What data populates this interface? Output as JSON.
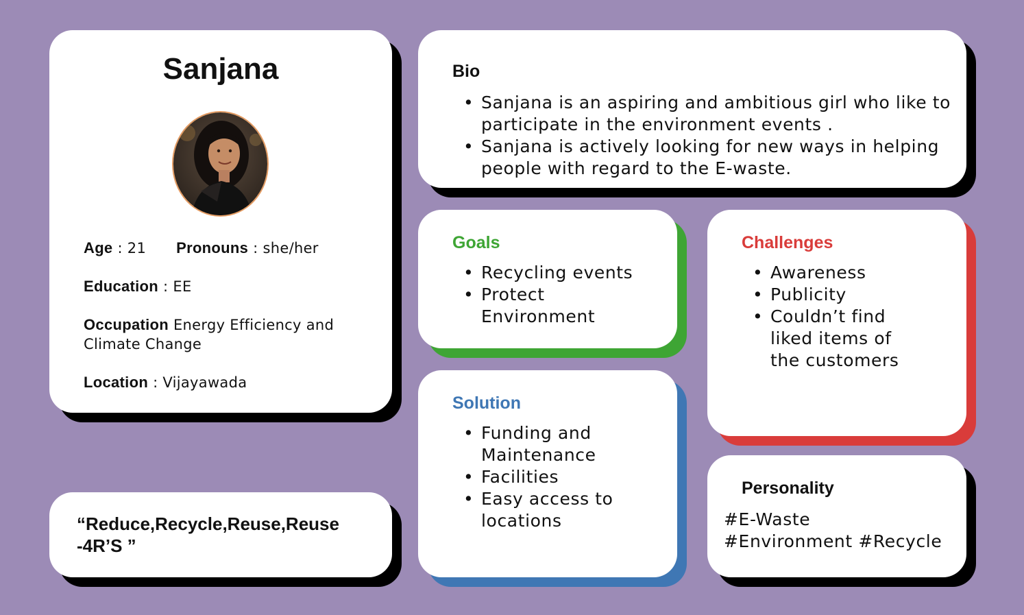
{
  "profile": {
    "name": "Sanjana",
    "age_label": "Age",
    "age_value": ": 21",
    "pronouns_label": "Pronouns",
    "pronouns_value": ": she/her",
    "education_label": "Education",
    "education_value": ": EE",
    "occupation_label": "Occupation",
    "occupation_value": " Energy Efficiency and Climate Change",
    "location_label": "Location",
    "location_value": ": Vijayawada"
  },
  "quote": "“Reduce,Recycle,Reuse,Reuse -4R’S ”",
  "bio": {
    "heading": "Bio",
    "items": [
      "Sanjana is an aspiring and ambitious girl who like to participate in the environment events .",
      "Sanjana is actively looking for new ways in helping people with regard to the E-waste."
    ]
  },
  "goals": {
    "heading": "Goals",
    "items": [
      "Recycling events",
      "Protect Environment"
    ]
  },
  "challenges": {
    "heading": "Challenges",
    "items": [
      "Awareness",
      "Publicity",
      "Couldn’t find liked items of the customers"
    ]
  },
  "solution": {
    "heading": "Solution",
    "items": [
      "Funding and Maintenance",
      "Facilities",
      "Easy access to locations"
    ]
  },
  "personality": {
    "heading": "Personality",
    "tags_line1": "#E-Waste",
    "tags_line2": "#Environment #Recycle"
  },
  "colors": {
    "background": "#9c8bb6",
    "goals": "#3ea534",
    "challenges": "#d93c3a",
    "solution": "#3f77b4",
    "shadow": "#000000",
    "avatar_border": "#e39a60"
  }
}
